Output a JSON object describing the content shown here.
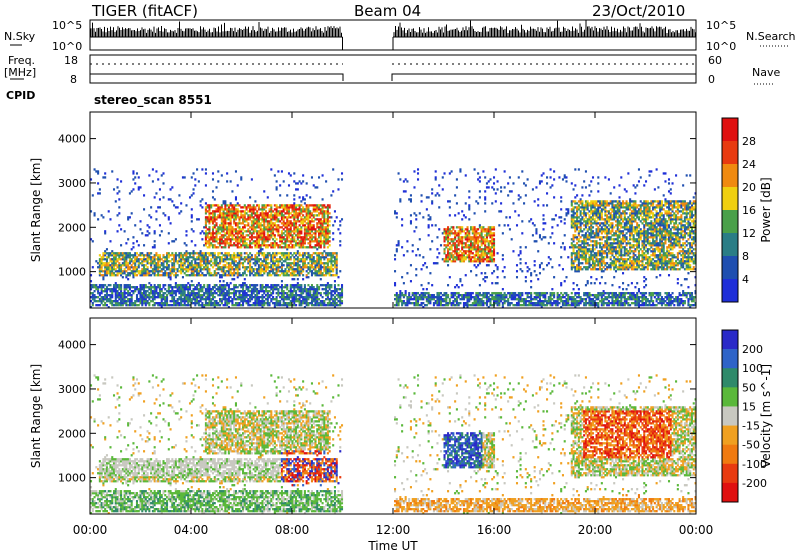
{
  "header": {
    "title": "TIGER (fitACF)",
    "beam": "Beam 04",
    "date": "23/Oct/2010"
  },
  "top_panels": {
    "nsky_label": "N.Sky",
    "nsky_ticks": [
      "10^5",
      "10^0"
    ],
    "nsearch_label": "N.Search",
    "freq_label": [
      "Freq.",
      "[MHz]"
    ],
    "freq_ticks": [
      "18",
      "8"
    ],
    "nave_label": "Nave",
    "nave_ticks": [
      "60",
      "0"
    ],
    "cpid_label": "CPID",
    "cpid_value": "stereo_scan 8551"
  },
  "power_panel": {
    "ylabel": "Slant Range [km]",
    "yticks": [
      "1000",
      "2000",
      "3000",
      "4000"
    ],
    "colorbar_label": "Power [dB]",
    "colorbar_ticks": [
      "4",
      "8",
      "12",
      "16",
      "20",
      "24",
      "28"
    ],
    "colorbar_colors": [
      "#1f2fd8",
      "#1f4fb0",
      "#2a7d86",
      "#4aa04a",
      "#f0d010",
      "#f08a10",
      "#e83a10",
      "#e01010"
    ]
  },
  "velocity_panel": {
    "ylabel": "Slant Range [km]",
    "yticks": [
      "1000",
      "2000",
      "3000",
      "4000"
    ],
    "colorbar_label": "Velocity [m s^-1]",
    "colorbar_ticks": [
      "200",
      "100",
      "50",
      "15",
      "-15",
      "-50",
      "-100",
      "-200"
    ],
    "colorbar_colors": [
      "#2a2ac8",
      "#2f64c8",
      "#2f8a6a",
      "#5ab83a",
      "#c8c8c0",
      "#f0a020",
      "#f07a10",
      "#e83a10",
      "#e01010"
    ]
  },
  "x_axis": {
    "ticks": [
      "00:00",
      "04:00",
      "08:00",
      "12:00",
      "16:00",
      "20:00",
      "00:00"
    ],
    "xlabel": "Time UT"
  },
  "chart_data": {
    "type": "heatmap",
    "x_range_hours": [
      0,
      24
    ],
    "y_range_km": [
      180,
      4600
    ],
    "data_gap_hours": [
      10,
      12
    ],
    "power_regions": [
      {
        "t0": 0.3,
        "t1": 9.8,
        "r0": 900,
        "r1": 1400,
        "level": "medium"
      },
      {
        "t0": 4.5,
        "t1": 9.5,
        "r0": 1500,
        "r1": 2500,
        "level": "high"
      },
      {
        "t0": 0.0,
        "t1": 10.0,
        "r0": 200,
        "r1": 700,
        "level": "low"
      },
      {
        "t0": 14.0,
        "t1": 16.0,
        "r0": 1200,
        "r1": 2000,
        "level": "high"
      },
      {
        "t0": 19.0,
        "t1": 24.0,
        "r0": 1000,
        "r1": 2600,
        "level": "medium"
      },
      {
        "t0": 12.0,
        "t1": 24.0,
        "r0": 200,
        "r1": 500,
        "level": "low"
      }
    ],
    "velocity_regions": [
      {
        "t0": 0.3,
        "t1": 9.0,
        "r0": 1000,
        "r1": 1400,
        "class": "near-zero"
      },
      {
        "t0": 7.5,
        "t1": 10.0,
        "r0": 800,
        "r1": 1600,
        "class": "mixed"
      },
      {
        "t0": 0.0,
        "t1": 10.0,
        "r0": 200,
        "r1": 700,
        "class": "positive-small"
      },
      {
        "t0": 14.0,
        "t1": 15.5,
        "r0": 1200,
        "r1": 2000,
        "class": "positive-large"
      },
      {
        "t0": 12.0,
        "t1": 24.0,
        "r0": 200,
        "r1": 600,
        "class": "negative-small"
      },
      {
        "t0": 19.5,
        "t1": 23.0,
        "r0": 1400,
        "r1": 2500,
        "class": "negative-large"
      }
    ]
  }
}
